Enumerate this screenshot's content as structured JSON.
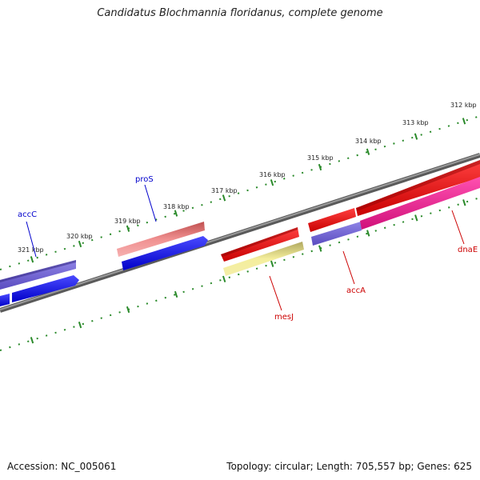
{
  "title": "Candidatus Blochmannia floridanus, complete genome",
  "footer": {
    "accession": "Accession: NC_005061",
    "summary": "Topology: circular; Length: 705,557 bp; Genes: 625"
  },
  "ticks": [
    "312 kbp",
    "313 kbp",
    "314 kbp",
    "315 kbp",
    "316 kbp",
    "317 kbp",
    "318 kbp",
    "319 kbp",
    "320 kbp",
    "321 kbp"
  ],
  "genes": [
    {
      "name": "accC",
      "color": "#0000cc"
    },
    {
      "name": "proS",
      "color": "#0000cc"
    },
    {
      "name": "mesJ",
      "color": "#cc0000"
    },
    {
      "name": "accA",
      "color": "#cc0000"
    },
    {
      "name": "dnaE",
      "color": "#cc0000"
    }
  ],
  "colors": {
    "backbone": "#7a7a7a",
    "ruler": "#2a8a2a",
    "cds_forward": "#0000ee",
    "cds_reverse": "#ee0000",
    "gene_forward": "#6a5acd",
    "gene_reverse": "#f08080",
    "misc_yellow": "#eee68c",
    "misc_pink": "#ff1493"
  }
}
